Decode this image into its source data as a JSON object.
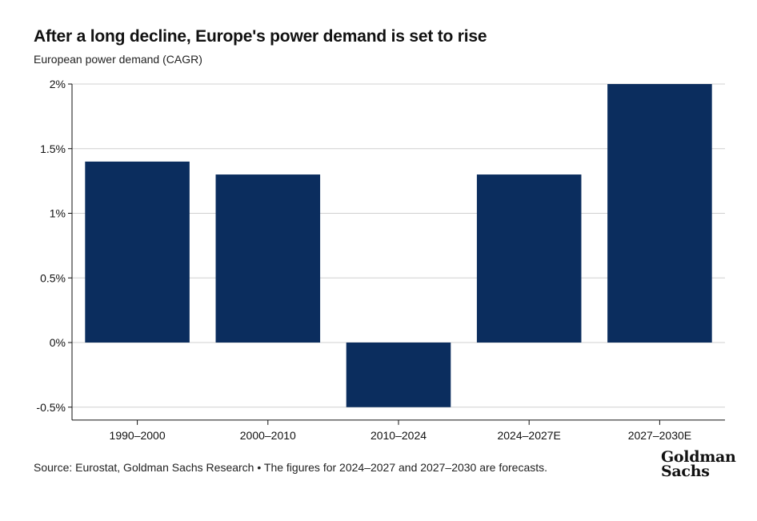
{
  "header": {
    "title": "After a long decline, Europe's power demand is set to rise",
    "subtitle": "European power demand (CAGR)"
  },
  "footer": {
    "source": "Source: Eurostat, Goldman Sachs Research • The figures for 2024–2027 and 2027–2030 are forecasts.",
    "logo_line1": "Goldman",
    "logo_line2": "Sachs"
  },
  "colors": {
    "bar": "#0b2d5e",
    "grid": "#d0d0d0",
    "axis": "#111111"
  },
  "chart_data": {
    "type": "bar",
    "title": "After a long decline, Europe's power demand is set to rise",
    "subtitle": "European power demand (CAGR)",
    "categories": [
      "1990–2000",
      "2000–2010",
      "2010–2024",
      "2024–2027E",
      "2027–2030E"
    ],
    "values": [
      1.4,
      1.3,
      -0.5,
      1.3,
      2.0
    ],
    "unit": "%",
    "ylim": [
      -0.6,
      2.0
    ],
    "yticks": [
      2,
      1.5,
      1,
      0.5,
      0,
      -0.5
    ],
    "ytick_labels": [
      "2%",
      "1.5%",
      "1%",
      "0.5%",
      "0%",
      "-0.5%"
    ],
    "grid": true,
    "legend": "none"
  }
}
